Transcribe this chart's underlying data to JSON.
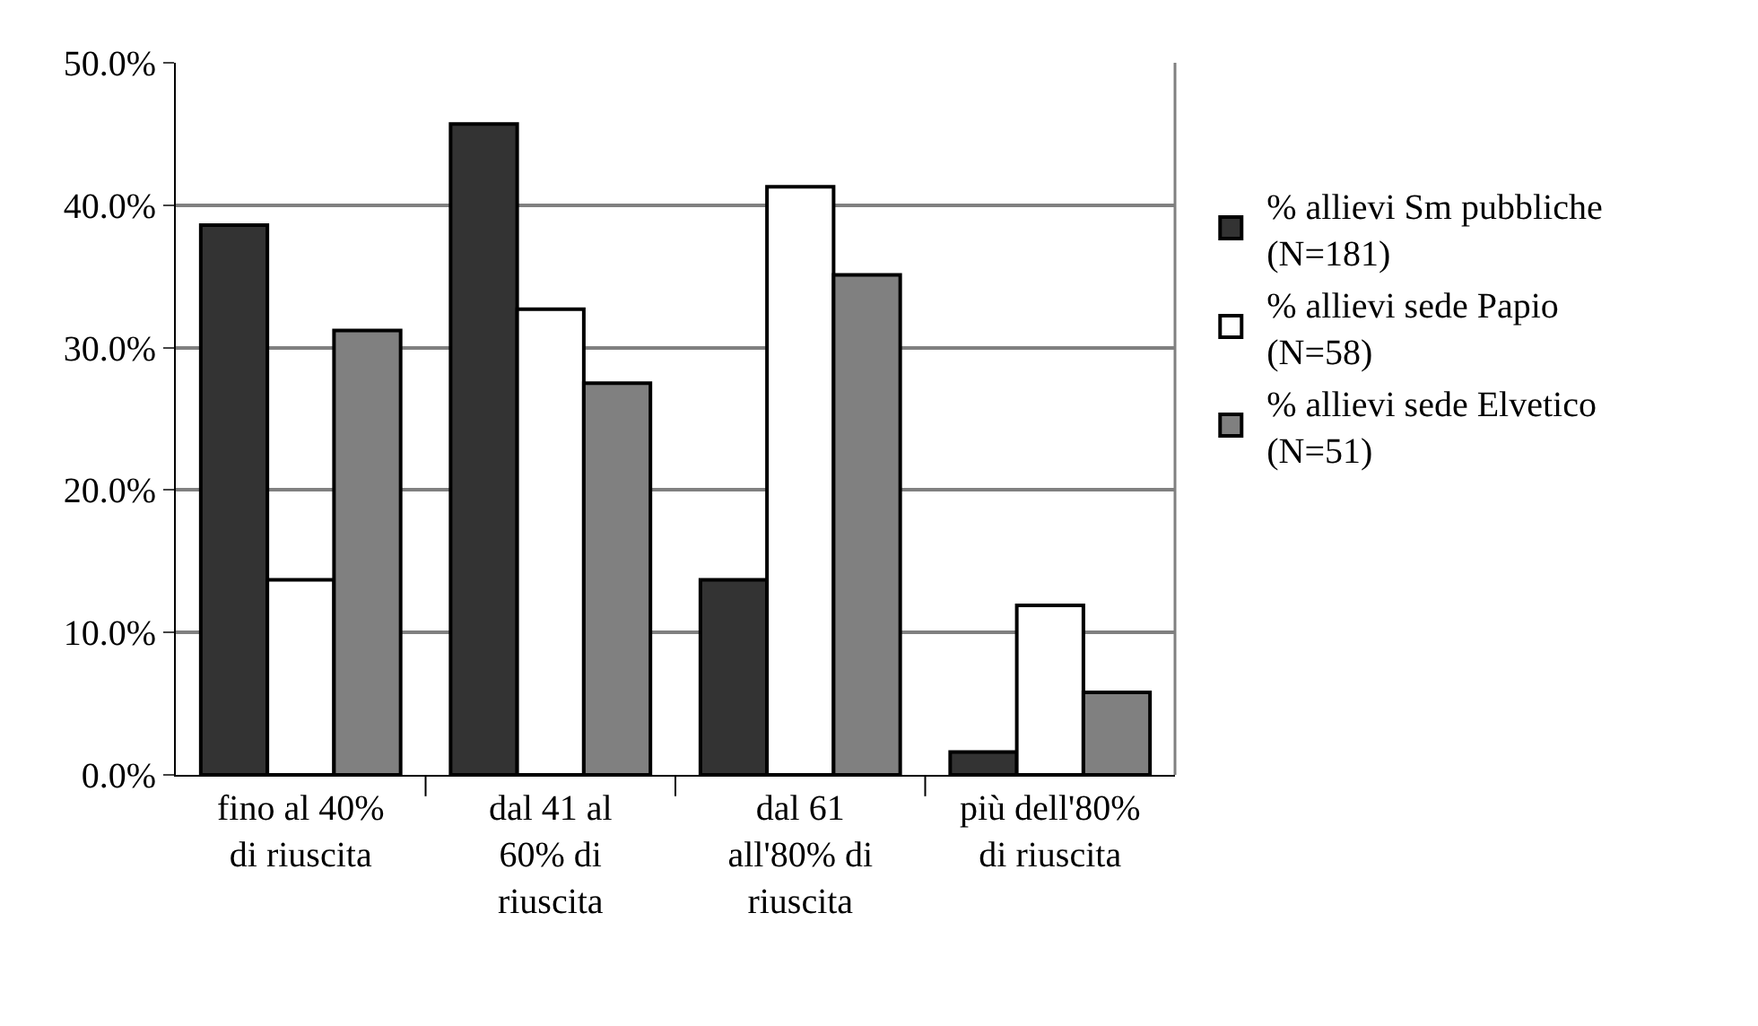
{
  "chart_data": {
    "type": "bar",
    "categories": [
      "fino al 40% di riuscita",
      "dal 41 al 60% di riuscita",
      "dal 61 all'80% di riuscita",
      "più dell'80% di riuscita"
    ],
    "series": [
      {
        "name": "% allievi Sm pubbliche (N=181)",
        "color": "#333333",
        "values": [
          38.6,
          45.7,
          13.7,
          1.6
        ]
      },
      {
        "name": "% allievi sede Papio (N=58)",
        "color": "#ffffff",
        "values": [
          13.7,
          32.7,
          41.3,
          11.9
        ]
      },
      {
        "name": "% allievi sede Elvetico (N=51)",
        "color": "#808080",
        "values": [
          31.2,
          27.5,
          35.1,
          5.8
        ]
      }
    ],
    "ylim": [
      0,
      50
    ],
    "yticks": [
      {
        "value": 0,
        "label": "0.0%"
      },
      {
        "value": 10,
        "label": "10.0%"
      },
      {
        "value": 20,
        "label": "20.0%"
      },
      {
        "value": 30,
        "label": "30.0%"
      },
      {
        "value": 40,
        "label": "40.0%"
      },
      {
        "value": 50,
        "label": "50.0%"
      }
    ],
    "grid": "y",
    "legend": "right"
  }
}
